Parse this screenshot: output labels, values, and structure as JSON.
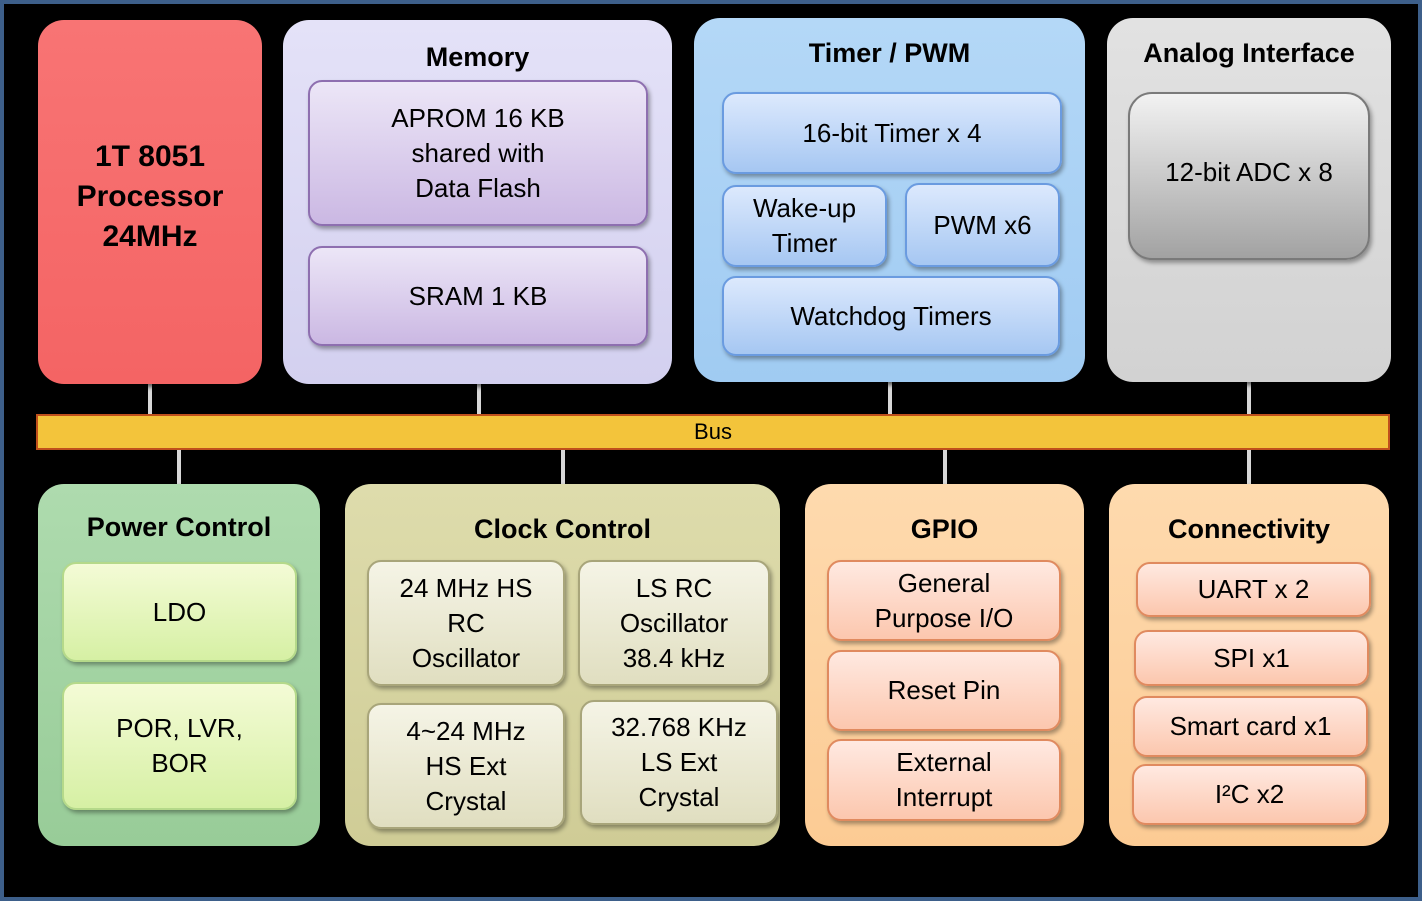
{
  "colors": {
    "background": "#000000",
    "frame": "#3d5f8a",
    "bus": "#f3c43b",
    "processor": "#f86b6b",
    "memory": "#d9d6f2",
    "timer": "#a7d0f4",
    "analog": "#d9d9d9",
    "power": "#a3d4a3",
    "clock": "#d7d5a0",
    "gpio": "#fdd19f",
    "connectivity": "#fdd19f"
  },
  "processor": {
    "label": "1T 8051\nProcessor\n24MHz"
  },
  "memory": {
    "title": "Memory",
    "items": [
      "APROM 16 KB\nshared with\nData Flash",
      "SRAM 1 KB"
    ]
  },
  "timer": {
    "title": "Timer / PWM",
    "items": [
      "16-bit Timer x 4",
      "Wake-up\nTimer",
      "PWM x6",
      "Watchdog Timers"
    ]
  },
  "analog": {
    "title": "Analog Interface",
    "items": [
      "12-bit ADC x 8"
    ]
  },
  "bus": {
    "label": "Bus"
  },
  "power": {
    "title": "Power Control",
    "items": [
      "LDO",
      "POR, LVR,\nBOR"
    ]
  },
  "clock": {
    "title": "Clock Control",
    "items": [
      "24 MHz HS\nRC\nOscillator",
      "LS RC\nOscillator\n38.4 kHz",
      "4~24 MHz\nHS Ext\nCrystal",
      "32.768 KHz\nLS Ext\nCrystal"
    ]
  },
  "gpio": {
    "title": "GPIO",
    "items": [
      "General\nPurpose I/O",
      "Reset Pin",
      "External\nInterrupt"
    ]
  },
  "connectivity": {
    "title": "Connectivity",
    "items": [
      "UART x 2",
      "SPI x1",
      "Smart card x1",
      "I²C x2"
    ]
  }
}
